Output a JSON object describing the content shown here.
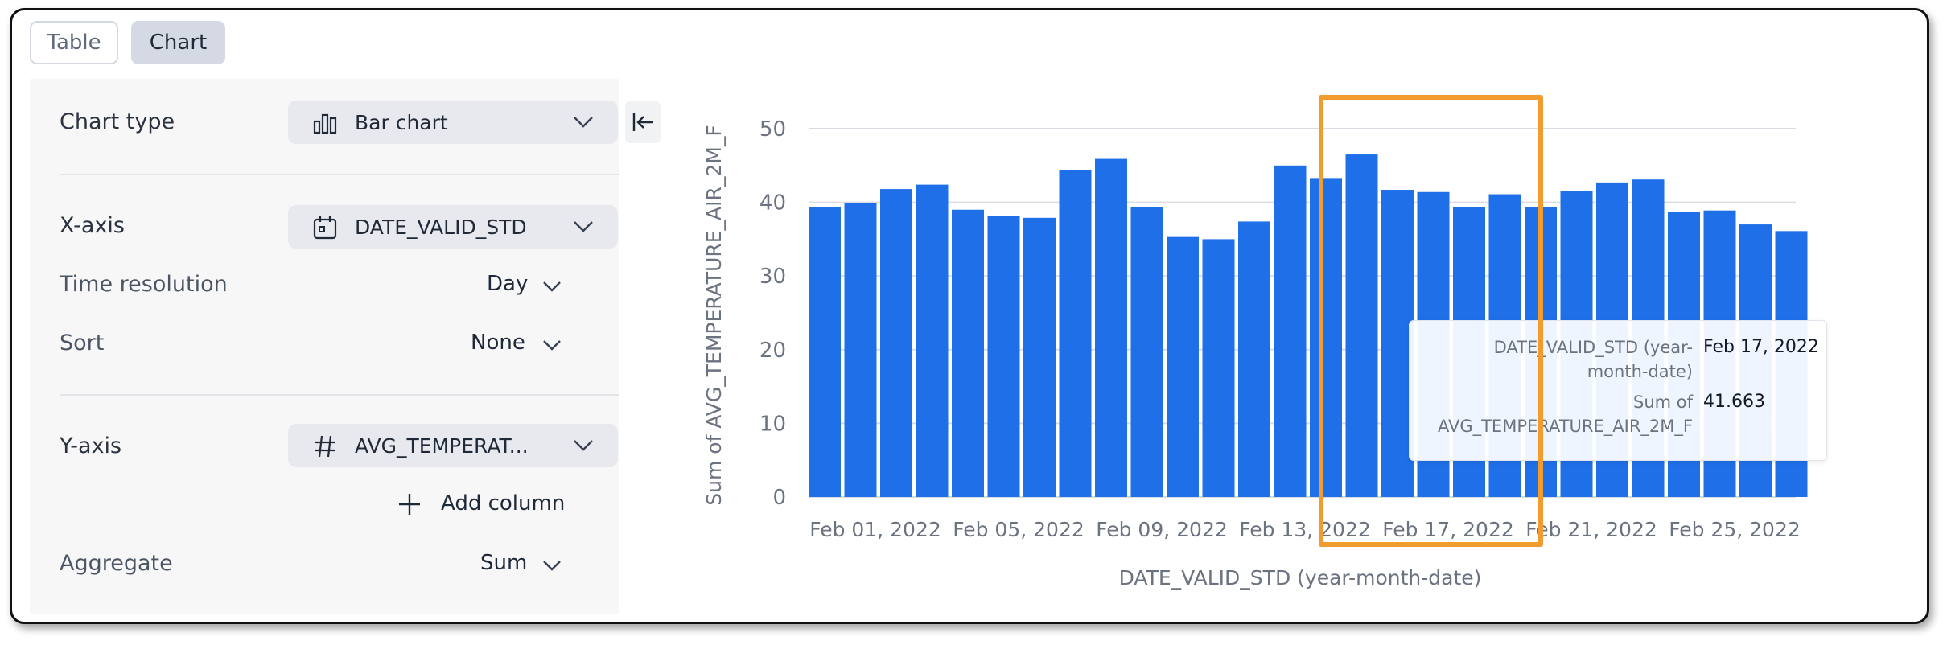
{
  "tabs": [
    {
      "label": "Table",
      "active": false
    },
    {
      "label": "Chart",
      "active": true
    }
  ],
  "settings": {
    "chart_type": {
      "label": "Chart type",
      "value": "Bar chart",
      "icon": "bar-chart-icon"
    },
    "x_axis": {
      "label": "X-axis",
      "value": "DATE_VALID_STD",
      "icon": "calendar-icon"
    },
    "time_resolution": {
      "label": "Time resolution",
      "value": "Day"
    },
    "sort": {
      "label": "Sort",
      "value": "None"
    },
    "y_axis": {
      "label": "Y-axis",
      "value": "AVG_TEMPERAT...",
      "icon": "hash-icon"
    },
    "add_column": "Add column",
    "aggregate": {
      "label": "Aggregate",
      "value": "Sum"
    }
  },
  "colors": {
    "bar": "#1f6fe8",
    "highlight": "#f29b2e",
    "grid": "#d9dce2"
  },
  "tooltip": {
    "key1_line1": "DATE_VALID_STD (year-",
    "key1_line2": "month-date)",
    "val1": "Feb 17, 2022",
    "key2_line1": "Sum of",
    "key2_line2": "AVG_TEMPERATURE_AIR_2M_F",
    "val2": "41.663"
  },
  "chart_data": {
    "type": "bar",
    "xlabel": "DATE_VALID_STD (year-month-date)",
    "ylabel": "Sum of AVG_TEMPERATURE_AIR_2M_F",
    "ylim": [
      0,
      50
    ],
    "yticks": [
      0,
      10,
      20,
      30,
      40,
      50
    ],
    "xtick_labels": [
      "Feb 01, 2022",
      "Feb 05, 2022",
      "Feb 09, 2022",
      "Feb 13, 2022",
      "Feb 17, 2022",
      "Feb 21, 2022",
      "Feb 25, 2022"
    ],
    "grid": true,
    "categories": [
      "Feb 01, 2022",
      "Feb 02, 2022",
      "Feb 03, 2022",
      "Feb 04, 2022",
      "Feb 05, 2022",
      "Feb 06, 2022",
      "Feb 07, 2022",
      "Feb 08, 2022",
      "Feb 09, 2022",
      "Feb 10, 2022",
      "Feb 11, 2022",
      "Feb 12, 2022",
      "Feb 13, 2022",
      "Feb 14, 2022",
      "Feb 15, 2022",
      "Feb 16, 2022",
      "Feb 17, 2022",
      "Feb 18, 2022",
      "Feb 19, 2022",
      "Feb 20, 2022",
      "Feb 21, 2022",
      "Feb 22, 2022",
      "Feb 23, 2022",
      "Feb 24, 2022",
      "Feb 25, 2022",
      "Feb 26, 2022",
      "Feb 27, 2022",
      "Feb 28, 2022"
    ],
    "values": [
      39.3,
      39.9,
      41.8,
      42.4,
      39.0,
      38.1,
      37.9,
      44.4,
      45.9,
      39.4,
      35.3,
      35.0,
      37.4,
      45.0,
      43.3,
      46.5,
      41.7,
      41.4,
      39.3,
      41.1,
      39.3,
      41.5,
      42.7,
      43.1,
      38.7,
      38.9,
      37.0,
      36.1
    ]
  }
}
